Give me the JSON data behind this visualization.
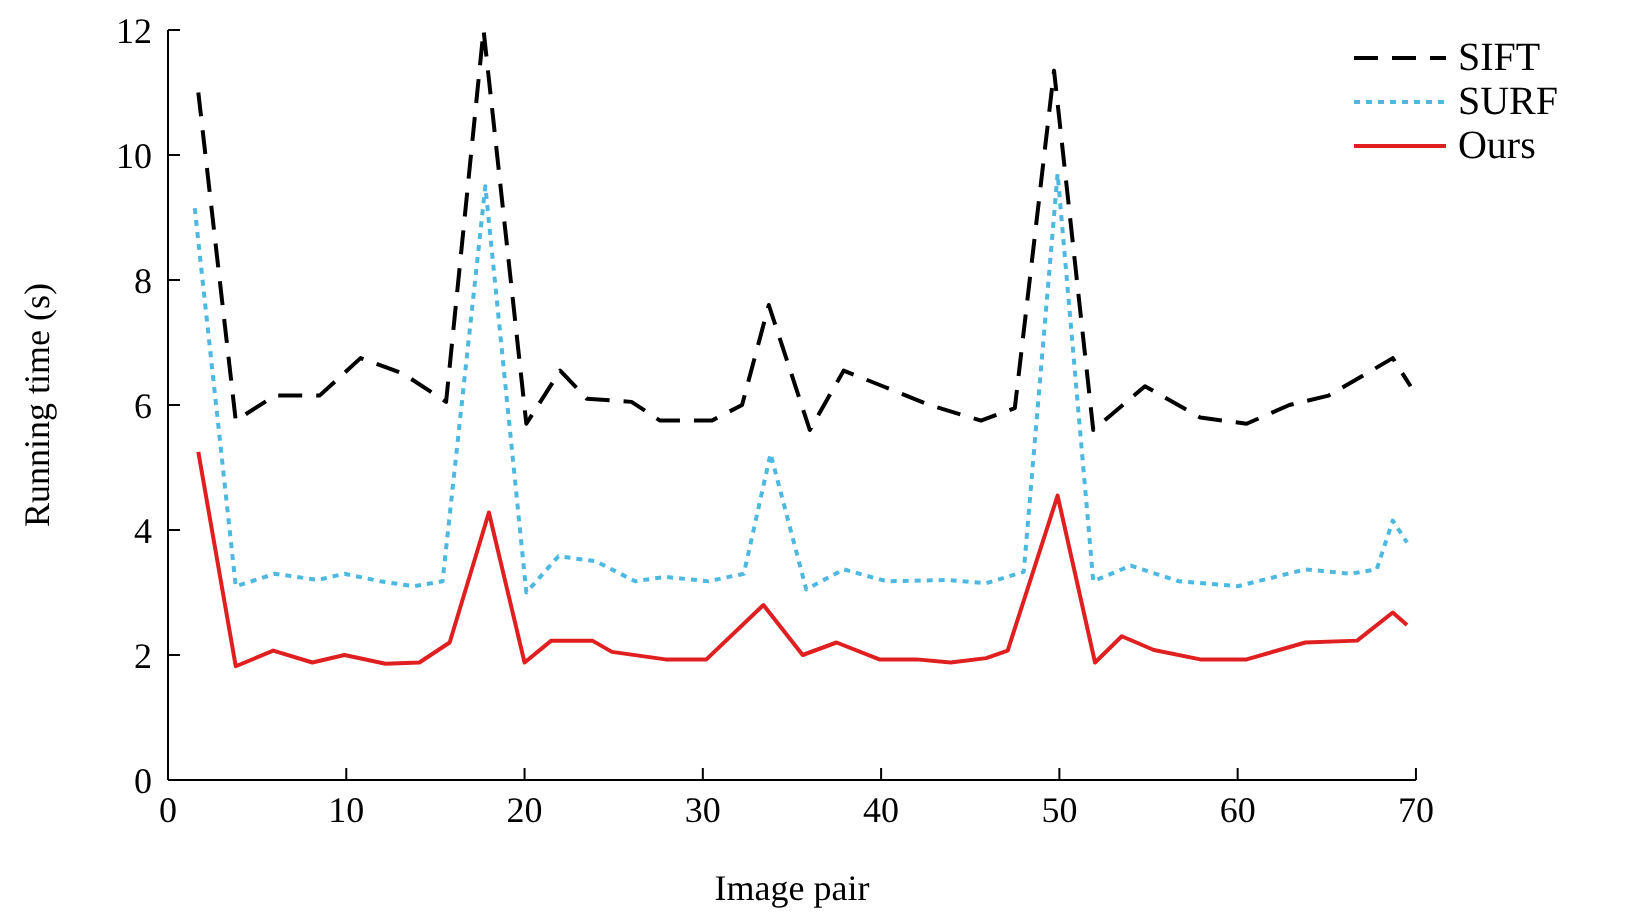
{
  "chart_data": {
    "type": "line",
    "xlabel": "Image pair",
    "ylabel": "Running time (s)",
    "xlim": [
      0,
      70
    ],
    "xticks": [
      0,
      10,
      20,
      30,
      40,
      50,
      60,
      70
    ],
    "ylim": [
      0,
      12
    ],
    "yticks": [
      0,
      2,
      4,
      6,
      8,
      10,
      12
    ],
    "grid": false,
    "legend": "top right",
    "marker": "none",
    "series": [
      {
        "name": "SIFT",
        "color": "#000000",
        "line_style": "dashed",
        "x": [
          1.7,
          3.8,
          6.0,
          8.5,
          10.8,
          13.2,
          15.6,
          17.7,
          20.1,
          22.0,
          23.5,
          26.0,
          27.6,
          30.5,
          32.2,
          33.7,
          36.0,
          37.9,
          40.1,
          42.7,
          45.6,
          47.5,
          49.7,
          51.9,
          54.8,
          57.9,
          60.5,
          62.9,
          65.1,
          68.7,
          69.7
        ],
        "values": [
          11.0,
          5.75,
          6.15,
          6.15,
          6.75,
          6.5,
          6.05,
          12.0,
          5.7,
          6.55,
          6.1,
          6.05,
          5.75,
          5.75,
          6.0,
          7.6,
          5.6,
          6.55,
          6.3,
          6.0,
          5.75,
          5.95,
          11.35,
          5.6,
          6.3,
          5.8,
          5.7,
          6.0,
          6.15,
          6.75,
          6.3
        ]
      },
      {
        "name": "SURF",
        "color": "#4db8e0",
        "line_style": "dotted",
        "x": [
          1.5,
          3.8,
          6.0,
          8.4,
          9.9,
          11.9,
          13.8,
          15.4,
          17.8,
          20.1,
          21.9,
          24.0,
          26.2,
          27.9,
          30.3,
          32.3,
          33.8,
          35.8,
          37.9,
          40.3,
          43.7,
          45.9,
          48.0,
          49.9,
          51.9,
          54.0,
          56.7,
          60.0,
          63.8,
          66.3,
          67.8,
          68.7,
          69.5
        ],
        "values": [
          9.15,
          3.1,
          3.3,
          3.2,
          3.3,
          3.18,
          3.1,
          3.18,
          9.5,
          3.0,
          3.58,
          3.5,
          3.18,
          3.25,
          3.18,
          3.3,
          5.22,
          3.05,
          3.37,
          3.18,
          3.2,
          3.15,
          3.33,
          9.7,
          3.18,
          3.43,
          3.18,
          3.1,
          3.37,
          3.3,
          3.37,
          4.15,
          3.8
        ]
      },
      {
        "name": "Ours",
        "color": "#e02020",
        "line_style": "solid",
        "x": [
          1.7,
          3.8,
          5.9,
          8.1,
          9.9,
          12.2,
          14.1,
          15.8,
          18.0,
          20.0,
          21.5,
          23.8,
          24.9,
          27.9,
          30.2,
          33.4,
          35.6,
          37.5,
          39.9,
          42.0,
          43.9,
          45.9,
          47.1,
          49.9,
          52.0,
          53.5,
          55.3,
          57.9,
          60.5,
          63.8,
          66.7,
          68.7,
          69.5
        ],
        "values": [
          5.25,
          1.82,
          2.07,
          1.88,
          2.0,
          1.86,
          1.88,
          2.2,
          4.28,
          1.88,
          2.23,
          2.23,
          2.05,
          1.93,
          1.93,
          2.8,
          2.0,
          2.2,
          1.93,
          1.93,
          1.88,
          1.95,
          2.07,
          4.55,
          1.88,
          2.3,
          2.08,
          1.93,
          1.93,
          2.2,
          2.23,
          2.68,
          2.48
        ]
      }
    ]
  }
}
